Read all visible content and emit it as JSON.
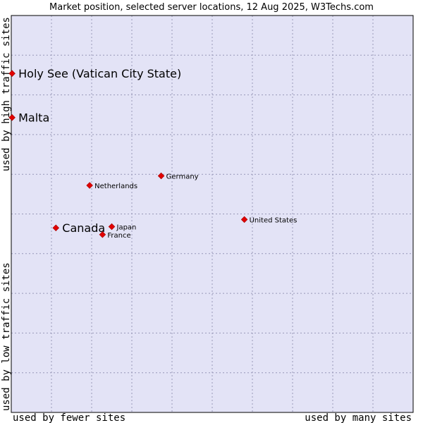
{
  "chart_data": {
    "type": "scatter",
    "title": "Market position, selected server locations, 12 Aug 2025, W3Techs.com",
    "xlabel_left": "used by fewer sites",
    "xlabel_right": "used by many sites",
    "ylabel_bottom": "used by low traffic sites",
    "ylabel_top": "used by high traffic sites",
    "xlim": [
      0,
      100
    ],
    "ylim": [
      0,
      100
    ],
    "grid": true,
    "colors": {
      "plot_bg": "#e3e3f6",
      "grid": "#9898b8",
      "marker": "#e30000",
      "marker_stroke": "#b00000"
    },
    "points": [
      {
        "label": "Holy See (Vatican City State)",
        "x": 0.2,
        "y": 85.4,
        "highlight": true
      },
      {
        "label": "Malta",
        "x": 0.2,
        "y": 74.3,
        "highlight": true
      },
      {
        "label": "Germany",
        "x": 37.3,
        "y": 59.6,
        "highlight": false
      },
      {
        "label": "Netherlands",
        "x": 19.5,
        "y": 57.2,
        "highlight": false
      },
      {
        "label": "United States",
        "x": 58.0,
        "y": 48.6,
        "highlight": false
      },
      {
        "label": "Canada",
        "x": 11.1,
        "y": 46.5,
        "highlight": true
      },
      {
        "label": "Japan",
        "x": 25.0,
        "y": 46.8,
        "highlight": false
      },
      {
        "label": "France",
        "x": 22.7,
        "y": 44.8,
        "highlight": false
      }
    ]
  }
}
